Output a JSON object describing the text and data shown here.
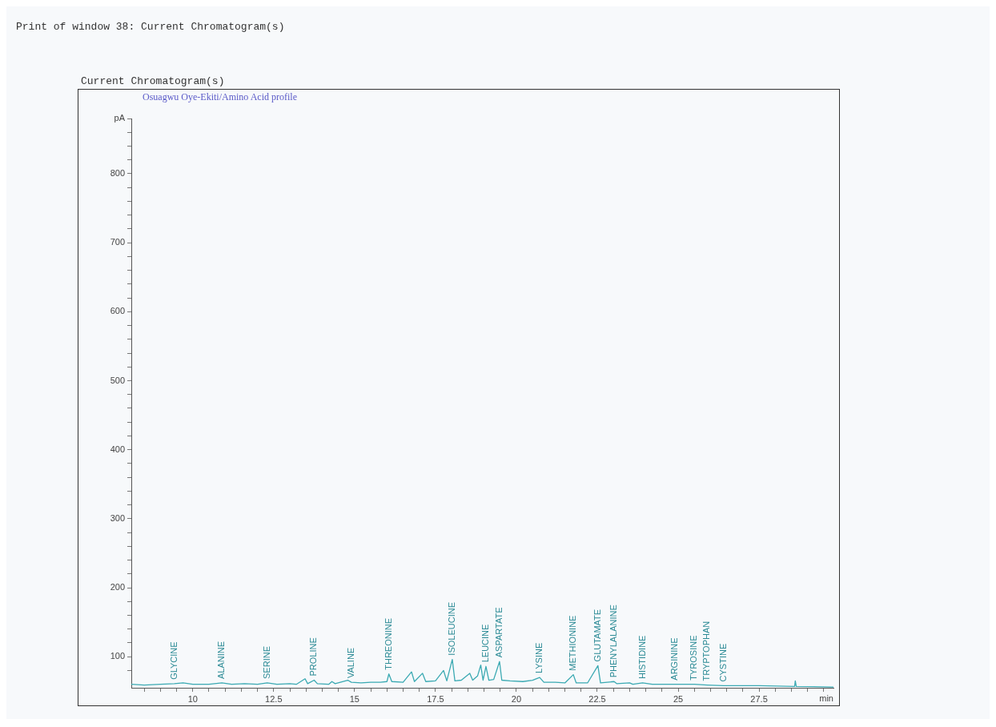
{
  "chart_data": {
    "type": "line",
    "title": "Print of window 38: Current Chromatogram(s)",
    "subtitle": "Current Chromatogram(s)",
    "xlabel": "min",
    "ylabel": "pA",
    "x": [
      8.1,
      8.5,
      9.0,
      9.43,
      9.7,
      10.0,
      10.5,
      10.9,
      11.2,
      11.6,
      12.0,
      12.3,
      12.6,
      13.0,
      13.2,
      13.47,
      13.55,
      13.75,
      13.85,
      14.2,
      14.3,
      14.4,
      14.79,
      14.9,
      15.2,
      15.5,
      15.8,
      16.0,
      16.06,
      16.15,
      16.5,
      16.76,
      16.85,
      17.1,
      17.2,
      17.5,
      17.75,
      17.85,
      18.02,
      18.1,
      18.3,
      18.56,
      18.65,
      18.8,
      18.9,
      18.97,
      19.06,
      19.15,
      19.3,
      19.48,
      19.55,
      19.8,
      20.2,
      20.5,
      20.72,
      20.85,
      21.2,
      21.5,
      21.76,
      21.85,
      22.2,
      22.52,
      22.6,
      23.02,
      23.1,
      23.5,
      23.6,
      23.9,
      24.2,
      24.9,
      25.5,
      25.9,
      26.4,
      27.5,
      28.6,
      28.62,
      28.65,
      29.8
    ],
    "series": [
      {
        "color": "#3aa9b2",
        "values": [
          60,
          59,
          60,
          61,
          62,
          60,
          60,
          62,
          60,
          61,
          60,
          62,
          60,
          61,
          60,
          68,
          61,
          66,
          61,
          60,
          64,
          61,
          66,
          63,
          62,
          63,
          63,
          64,
          75,
          64,
          63,
          78,
          64,
          76,
          64,
          65,
          80,
          65,
          96,
          65,
          66,
          76,
          66,
          72,
          88,
          66,
          86,
          66,
          67,
          93,
          66,
          65,
          64,
          66,
          70,
          63,
          63,
          62,
          74,
          62,
          62,
          87,
          62,
          64,
          61,
          62,
          60,
          62,
          60,
          60,
          60,
          59,
          58,
          58,
          57,
          65,
          57,
          56
        ]
      }
    ],
    "xlim": [
      8.1,
      29.8
    ],
    "ylim": [
      55,
      880
    ],
    "xticks": [
      {
        "value": 8.5,
        "label": null
      },
      {
        "value": 9,
        "label": null
      },
      {
        "value": 9.5,
        "label": null
      },
      10,
      {
        "value": 10.5,
        "label": null
      },
      {
        "value": 11,
        "label": null
      },
      {
        "value": 11.5,
        "label": null
      },
      {
        "value": 12,
        "label": null
      },
      12.5,
      {
        "value": 13,
        "label": null
      },
      {
        "value": 13.5,
        "label": null
      },
      {
        "value": 14,
        "label": null
      },
      {
        "value": 14.5,
        "label": null
      },
      15,
      {
        "value": 15.5,
        "label": null
      },
      {
        "value": 16,
        "label": null
      },
      {
        "value": 16.5,
        "label": null
      },
      {
        "value": 17,
        "label": null
      },
      17.5,
      {
        "value": 18,
        "label": null
      },
      {
        "value": 18.5,
        "label": null
      },
      {
        "value": 19,
        "label": null
      },
      {
        "value": 19.5,
        "label": null
      },
      20,
      {
        "value": 20.5,
        "label": null
      },
      {
        "value": 21,
        "label": null
      },
      {
        "value": 21.5,
        "label": null
      },
      {
        "value": 22,
        "label": null
      },
      22.5,
      {
        "value": 23,
        "label": null
      },
      {
        "value": 23.5,
        "label": null
      },
      {
        "value": 24,
        "label": null
      },
      {
        "value": 24.5,
        "label": null
      },
      25,
      {
        "value": 25.5,
        "label": null
      },
      {
        "value": 26,
        "label": null
      },
      {
        "value": 26.5,
        "label": null
      },
      {
        "value": 27,
        "label": null
      },
      27.5,
      {
        "value": 28,
        "label": null
      },
      {
        "value": 28.5,
        "label": null
      },
      {
        "value": 29,
        "label": null
      },
      {
        "value": 29.5,
        "label": null
      }
    ],
    "yticks": [
      {
        "value": 80,
        "label": null
      },
      100,
      {
        "value": 120,
        "label": null
      },
      {
        "value": 140,
        "label": null
      },
      {
        "value": 160,
        "label": null
      },
      {
        "value": 180,
        "label": null
      },
      200,
      {
        "value": 220,
        "label": null
      },
      {
        "value": 240,
        "label": null
      },
      {
        "value": 260,
        "label": null
      },
      {
        "value": 280,
        "label": null
      },
      300,
      {
        "value": 320,
        "label": null
      },
      {
        "value": 340,
        "label": null
      },
      {
        "value": 360,
        "label": null
      },
      {
        "value": 380,
        "label": null
      },
      400,
      {
        "value": 420,
        "label": null
      },
      {
        "value": 440,
        "label": null
      },
      {
        "value": 460,
        "label": null
      },
      {
        "value": 480,
        "label": null
      },
      500,
      {
        "value": 520,
        "label": null
      },
      {
        "value": 540,
        "label": null
      },
      {
        "value": 560,
        "label": null
      },
      {
        "value": 580,
        "label": null
      },
      600,
      {
        "value": 620,
        "label": null
      },
      {
        "value": 640,
        "label": null
      },
      {
        "value": 660,
        "label": null
      },
      {
        "value": 680,
        "label": null
      },
      700,
      {
        "value": 720,
        "label": null
      },
      {
        "value": 740,
        "label": null
      },
      {
        "value": 760,
        "label": null
      },
      {
        "value": 780,
        "label": null
      },
      800,
      {
        "value": 820,
        "label": null
      },
      {
        "value": 840,
        "label": null
      },
      {
        "value": 860,
        "label": null
      },
      {
        "value": 880,
        "label": null
      }
    ],
    "grid": false,
    "legend": false,
    "marker": "none",
    "line_style": "solid",
    "annotations": [
      "Osuagwu Oye-Ekiti/Amino Acid profile",
      {
        "text": "GLYCINE",
        "x": 9.43,
        "y": 61
      },
      {
        "text": "ALANINE",
        "x": 10.9,
        "y": 62
      },
      {
        "text": "SERINE",
        "x": 12.3,
        "y": 62
      },
      {
        "text": "PROLINE",
        "x": 13.75,
        "y": 66
      },
      {
        "text": "VALINE",
        "x": 14.9,
        "y": 63
      },
      {
        "text": "THREONINE",
        "x": 16.06,
        "y": 75
      },
      {
        "text": "ISOLEUCINE",
        "x": 18.02,
        "y": 96
      },
      {
        "text": "LEUCINE",
        "x": 19.06,
        "y": 86
      },
      {
        "text": "ASPARTATE",
        "x": 19.48,
        "y": 93
      },
      {
        "text": "LYSINE",
        "x": 20.72,
        "y": 70
      },
      {
        "text": "METHIONINE",
        "x": 21.76,
        "y": 74
      },
      {
        "text": "GLUTAMATE",
        "x": 22.52,
        "y": 87
      },
      {
        "text": "PHENYLALANINE",
        "x": 23.02,
        "y": 64
      },
      {
        "text": "HISTIDINE",
        "x": 23.9,
        "y": 62
      },
      {
        "text": "ARGININE",
        "x": 24.9,
        "y": 60
      },
      {
        "text": "TYROSINE",
        "x": 25.5,
        "y": 60
      },
      {
        "text": "TRYPTOPHAN",
        "x": 25.9,
        "y": 59
      },
      {
        "text": "CYSTINE",
        "x": 26.4,
        "y": 58
      }
    ]
  }
}
